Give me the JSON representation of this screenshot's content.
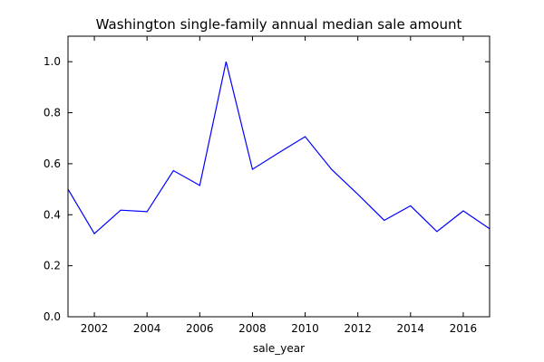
{
  "chart_data": {
    "type": "line",
    "title": "Washington single-family annual median sale amount",
    "xlabel": "sale_year",
    "ylabel": "",
    "xlim": [
      2001,
      2017
    ],
    "ylim": [
      0.0,
      1.1
    ],
    "x_ticks": [
      2002,
      2004,
      2006,
      2008,
      2010,
      2012,
      2014,
      2016
    ],
    "y_ticks": [
      0.0,
      0.2,
      0.4,
      0.6,
      0.8,
      1.0
    ],
    "x_tick_labels": [
      "2002",
      "2004",
      "2006",
      "2008",
      "2010",
      "2012",
      "2014",
      "2016"
    ],
    "y_tick_labels": [
      "0.0",
      "0.2",
      "0.4",
      "0.6",
      "0.8",
      "1.0"
    ],
    "grid": false,
    "legend": "none",
    "x": [
      2001,
      2002,
      2003,
      2004,
      2005,
      2006,
      2007,
      2008,
      2009,
      2010,
      2011,
      2012,
      2013,
      2014,
      2015,
      2016,
      2017
    ],
    "series": [
      {
        "values": [
          0.5,
          0.326,
          0.418,
          0.412,
          0.573,
          0.515,
          1.0,
          0.578,
          0.643,
          0.706,
          0.578,
          0.48,
          0.378,
          0.435,
          0.334,
          0.415,
          0.345
        ],
        "color": "#0000ff"
      }
    ]
  }
}
